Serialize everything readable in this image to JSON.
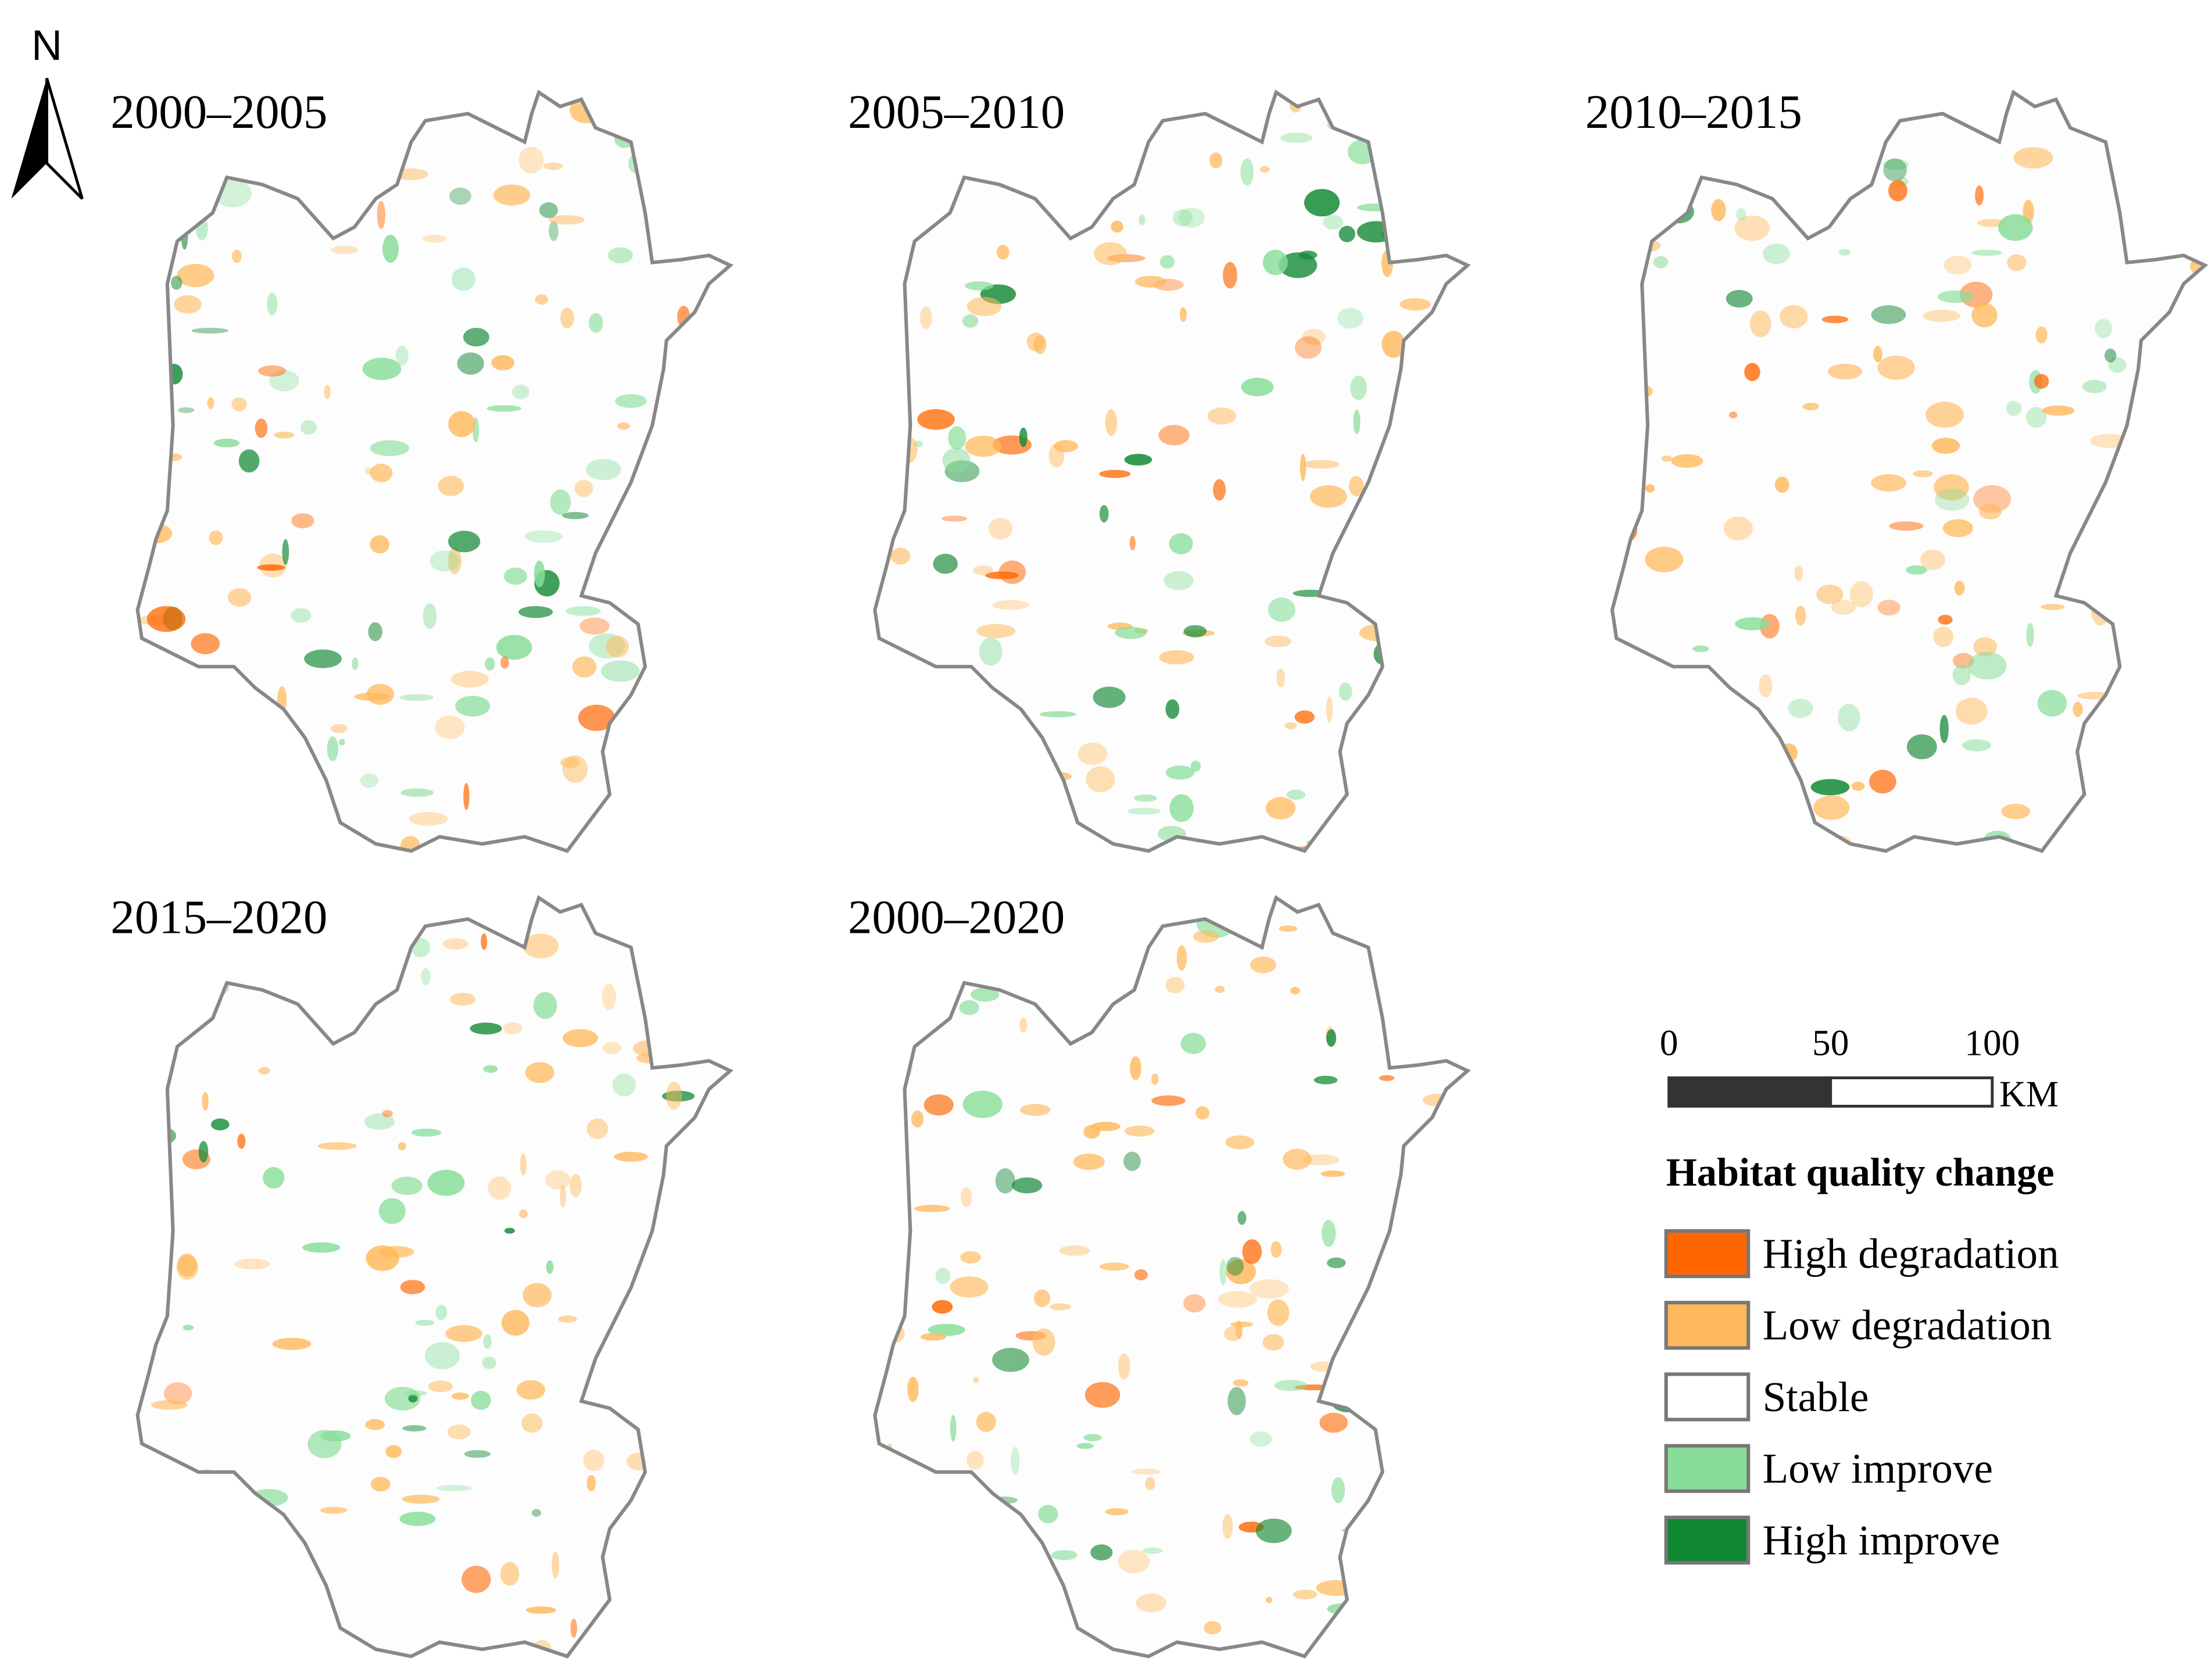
{
  "north_arrow": {
    "label": "N"
  },
  "panels": [
    {
      "title": "2000–2005"
    },
    {
      "title": "2005–2010"
    },
    {
      "title": "2010–2015"
    },
    {
      "title": "2015–2020"
    },
    {
      "title": "2000–2020"
    }
  ],
  "scale_bar": {
    "ticks": [
      0,
      50,
      100
    ],
    "unit": "KM"
  },
  "legend": {
    "title": "Habitat quality change",
    "items": [
      {
        "label": "High degradation",
        "color": "#ff6600"
      },
      {
        "label": "Low degradation",
        "color": "#ffb95c"
      },
      {
        "label": "Stable",
        "color": "#ffffff"
      },
      {
        "label": "Low improve",
        "color": "#88dd99"
      },
      {
        "label": "High improve",
        "color": "#118833"
      }
    ]
  }
}
